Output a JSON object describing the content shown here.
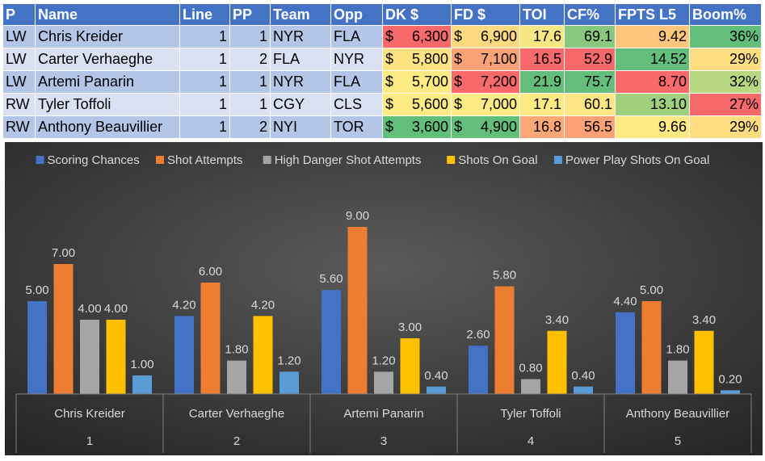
{
  "table": {
    "headers": [
      "P",
      "Name",
      "Line",
      "PP",
      "Team",
      "Opp",
      "DK $",
      "FD $",
      "TOI",
      "CF%",
      "FPTS L5",
      "Boom%"
    ],
    "rows": [
      {
        "p": "LW",
        "name": "Chris Kreider",
        "line": "1",
        "pp": "1",
        "team": "NYR",
        "opp": "FLA",
        "dk": "6,300",
        "fd": "6,900",
        "toi": "17.6",
        "cf": "69.1",
        "fpts": "9.42",
        "boom": "36%",
        "colors": {
          "dk": "#f8696b",
          "fd": "#fed980",
          "toi": "#f5e884",
          "cf": "#8ac97d",
          "fpts": "#fdc67d",
          "boom": "#63be7b"
        }
      },
      {
        "p": "LW",
        "name": "Carter Verhaeghe",
        "line": "1",
        "pp": "2",
        "team": "FLA",
        "opp": "NYR",
        "dk": "5,800",
        "fd": "7,100",
        "toi": "16.5",
        "cf": "52.9",
        "fpts": "14.52",
        "boom": "29%",
        "colors": {
          "dk": "#ffe383",
          "fd": "#fba276",
          "toi": "#f8696b",
          "cf": "#f8696b",
          "fpts": "#63be7b",
          "boom": "#fedd81"
        }
      },
      {
        "p": "LW",
        "name": "Artemi Panarin",
        "line": "1",
        "pp": "1",
        "team": "NYR",
        "opp": "FLA",
        "dk": "5,700",
        "fd": "7,200",
        "toi": "21.9",
        "cf": "75.7",
        "fpts": "8.70",
        "boom": "32%",
        "colors": {
          "dk": "#ffeb84",
          "fd": "#f8696b",
          "toi": "#63be7b",
          "cf": "#63be7b",
          "fpts": "#f8696b",
          "boom": "#b7d780"
        }
      },
      {
        "p": "RW",
        "name": "Tyler Toffoli",
        "line": "1",
        "pp": "1",
        "team": "CGY",
        "opp": "CLS",
        "dk": "5,600",
        "fd": "7,000",
        "toi": "17.1",
        "cf": "60.1",
        "fpts": "13.10",
        "boom": "27%",
        "colors": {
          "dk": "#ffeb84",
          "fd": "#ffeb84",
          "toi": "#fdea83",
          "cf": "#fde683",
          "fpts": "#a0cf7e",
          "boom": "#f8696b"
        }
      },
      {
        "p": "RW",
        "name": "Anthony Beauvillier",
        "line": "1",
        "pp": "2",
        "team": "NYI",
        "opp": "TOR",
        "dk": "3,600",
        "fd": "4,900",
        "toi": "16.8",
        "cf": "56.5",
        "fpts": "9.66",
        "boom": "29%",
        "colors": {
          "dk": "#63be7b",
          "fd": "#63be7b",
          "toi": "#fba777",
          "cf": "#fca276",
          "fpts": "#fee983",
          "boom": "#fedd81"
        }
      }
    ],
    "currency": "$"
  },
  "chart_data": {
    "type": "bar",
    "title": "",
    "xlabel": "",
    "ylabel": "",
    "ylim": [
      0,
      9.5
    ],
    "grid": false,
    "legend": "top",
    "categories": [
      "Chris Kreider",
      "Carter Verhaeghe",
      "Artemi Panarin",
      "Tyler Toffoli",
      "Anthony Beauvillier"
    ],
    "category_numbers": [
      "1",
      "2",
      "3",
      "4",
      "5"
    ],
    "series": [
      {
        "name": "Scoring Chances",
        "color": "#4472c4",
        "values": [
          5.0,
          4.2,
          5.6,
          2.6,
          4.4
        ],
        "labels": [
          "5.00",
          "4.20",
          "5.60",
          "2.60",
          "4.40"
        ]
      },
      {
        "name": "Shot Attempts",
        "color": "#ed7d31",
        "values": [
          7.0,
          6.0,
          9.0,
          5.8,
          5.0
        ],
        "labels": [
          "7.00",
          "6.00",
          "9.00",
          "5.80",
          "5.00"
        ]
      },
      {
        "name": "High Danger Shot Attempts",
        "color": "#a5a5a5",
        "values": [
          4.0,
          1.8,
          1.2,
          0.8,
          1.8
        ],
        "labels": [
          "4.00",
          "1.80",
          "1.20",
          "0.80",
          "1.80"
        ]
      },
      {
        "name": "Shots On Goal",
        "color": "#ffc000",
        "values": [
          4.0,
          4.2,
          3.0,
          3.4,
          3.4
        ],
        "labels": [
          "4.00",
          "4.20",
          "3.00",
          "3.40",
          "3.40"
        ]
      },
      {
        "name": "Power Play Shots On Goal",
        "color": "#5b9bd5",
        "values": [
          1.0,
          1.2,
          0.4,
          0.4,
          0.2
        ],
        "labels": [
          "1.00",
          "1.20",
          "0.40",
          "0.40",
          "0.20"
        ]
      }
    ]
  }
}
